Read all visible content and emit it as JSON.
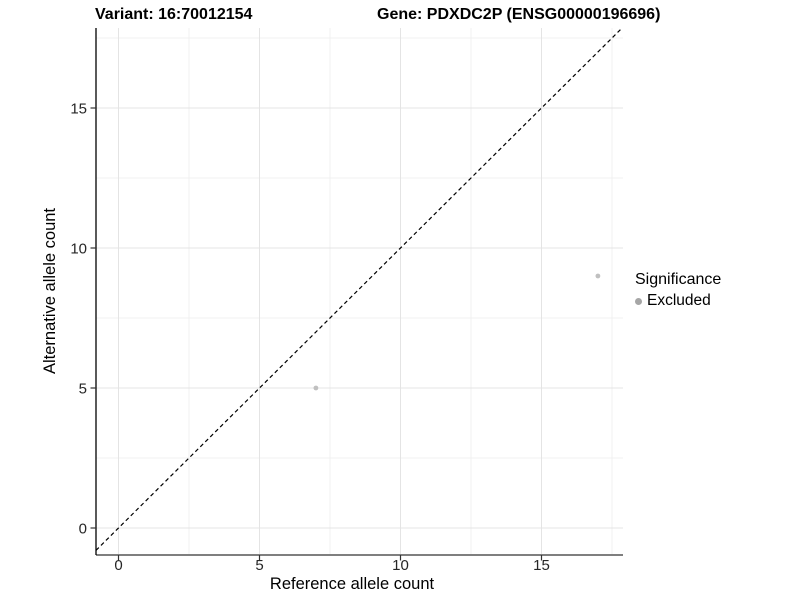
{
  "chart_data": {
    "type": "scatter",
    "title_left": "Variant: 16:70012154",
    "title_right": "Gene: PDXDC2P (ENSG00000196696)",
    "xlabel": "Reference allele count",
    "ylabel": "Alternative allele count",
    "xlim": [
      -0.8,
      17.9
    ],
    "ylim": [
      -1.0,
      17.9
    ],
    "x_major_ticks": [
      0,
      5,
      10,
      15
    ],
    "y_major_ticks": [
      0,
      5,
      10,
      15
    ],
    "x_minor_ticks": [
      2.5,
      7.5,
      12.5,
      17.5
    ],
    "y_minor_ticks": [
      2.5,
      7.5,
      12.5,
      17.5
    ],
    "grid": "major+minor",
    "identity_line": {
      "slope": 1,
      "intercept": 0,
      "style": "dashed",
      "color": "#000000"
    },
    "series": [
      {
        "name": "Excluded",
        "marker": "circle",
        "color": "#c0c0c0",
        "points": [
          {
            "x": 7,
            "y": 5
          },
          {
            "x": 17,
            "y": 9
          }
        ]
      }
    ],
    "legend": {
      "title": "Significance",
      "position": "right",
      "entries": [
        {
          "label": "Excluded",
          "color": "#a6a6a6"
        }
      ]
    }
  },
  "colors": {
    "background": "#ffffff",
    "grid_major": "#e4e4e4",
    "grid_minor": "#f1f1f1",
    "axis_line_bottom": "#7f7f7f",
    "axis_line_left": "#000000",
    "tick_mark": "#333333",
    "tick_text": "#262626"
  }
}
